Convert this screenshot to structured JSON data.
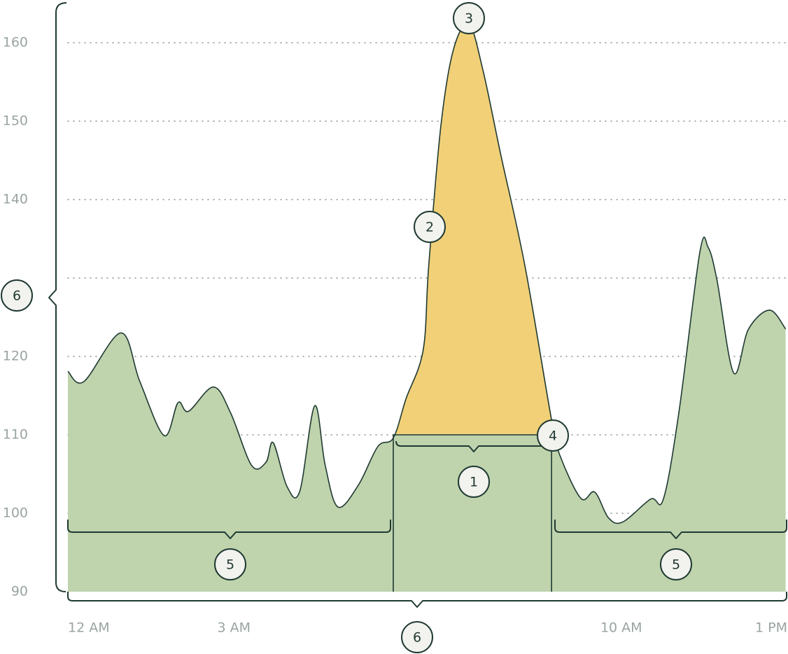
{
  "chart_data": {
    "type": "area",
    "x": [
      0,
      0.29,
      0.96,
      1.3,
      1.74,
      1.99,
      2.18,
      2.63,
      2.94,
      3.32,
      3.58,
      3.71,
      3.96,
      4.19,
      4.46,
      4.65,
      4.88,
      5.25,
      5.6,
      5.88,
      6.11,
      6.42,
      6.52,
      6.74,
      6.97,
      7.25,
      7.5,
      7.82,
      8.26,
      8.74,
      8.89,
      9.27,
      9.52,
      9.77,
      10.03,
      10.53,
      10.76,
      11.04,
      11.42,
      11.57,
      11.73,
      12.03,
      12.3,
      12.68,
      12.97
    ],
    "values": [
      118.1,
      116.8,
      123.0,
      116.8,
      109.9,
      114.1,
      113.0,
      116.1,
      112.8,
      106.1,
      106.5,
      109.0,
      103.4,
      102.8,
      113.7,
      106.1,
      100.8,
      103.6,
      108.5,
      109.6,
      114.6,
      120.8,
      131.5,
      149.4,
      159.2,
      162.3,
      156.5,
      145.8,
      131.5,
      111.9,
      107.4,
      101.9,
      102.7,
      99.4,
      98.9,
      101.8,
      101.8,
      112.8,
      133.3,
      133.9,
      129.7,
      117.9,
      123.5,
      125.9,
      123.5
    ],
    "color": "#bfd3ad",
    "highlight": {
      "from": 5.88,
      "to": 8.74,
      "threshold": 110,
      "color": "#f1d078"
    },
    "xlim": [
      0,
      13
    ],
    "xticks": [
      {
        "value": 0,
        "label": "12 AM"
      },
      {
        "value": 3,
        "label": "3 AM"
      },
      {
        "value": 10,
        "label": "10 AM"
      },
      {
        "value": 13,
        "label": "1 PM"
      }
    ],
    "ylim": [
      90,
      163
    ],
    "yticks": [
      90,
      100,
      110,
      120,
      {
        "value": 130,
        "label": null
      },
      140,
      150,
      160
    ],
    "grid": true,
    "annotations": [
      "1",
      "2",
      "3",
      "4",
      "5",
      "5",
      "6",
      "6"
    ]
  }
}
